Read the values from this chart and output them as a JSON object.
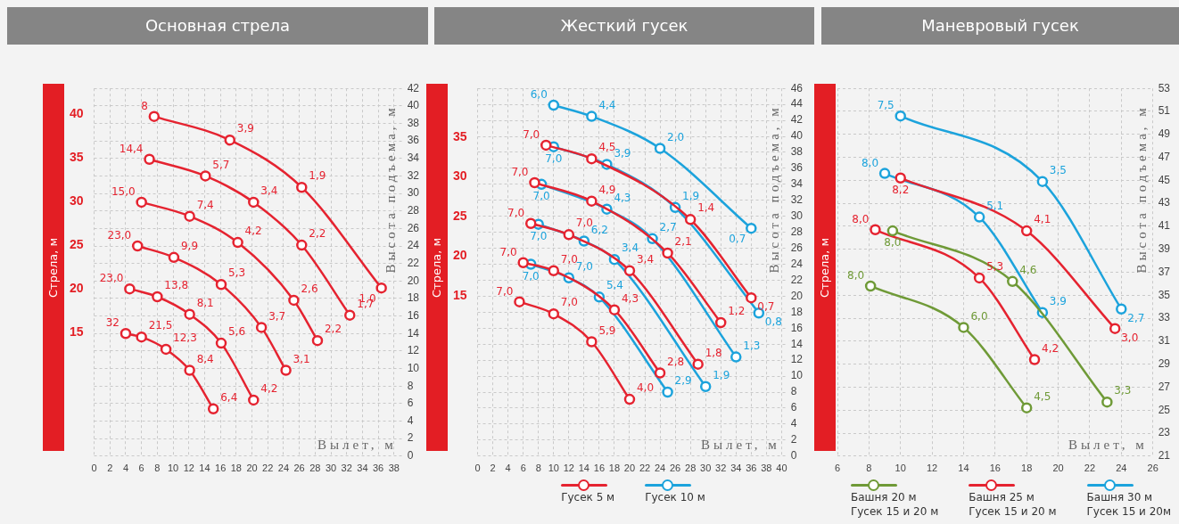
{
  "chart_data": [
    {
      "type": "line",
      "title": "Основная стрела",
      "xlabel": "Вылет, м",
      "ylabel": "Высота подъема, м",
      "y2label": "Стрела, м",
      "xlim": [
        0,
        39
      ],
      "xticks": [
        0,
        2,
        4,
        6,
        8,
        10,
        12,
        14,
        16,
        18,
        20,
        22,
        24,
        26,
        28,
        30,
        32,
        34,
        36,
        38
      ],
      "ylim": [
        0,
        42
      ],
      "yticks": [
        0,
        2,
        4,
        6,
        8,
        10,
        12,
        14,
        16,
        18,
        20,
        22,
        24,
        26,
        28,
        30,
        32,
        34,
        36,
        38,
        40,
        42
      ],
      "y2lim": [
        0.9,
        42.9
      ],
      "y2ticks": [
        15,
        20,
        25,
        30,
        35,
        40
      ],
      "grid": true,
      "legend": false,
      "marker": "circle",
      "line_style": "solid",
      "series": [
        {
          "color": "#e52330",
          "x": [
            7.6,
            17.2,
            26.3,
            36.4
          ],
          "values": [
            38.8,
            36.1,
            30.7,
            19.2
          ]
        },
        {
          "color": "#e52330",
          "x": [
            7.0,
            14.1,
            20.2,
            26.3,
            32.4
          ],
          "values": [
            33.9,
            32.0,
            29.0,
            24.1,
            16.1
          ]
        },
        {
          "color": "#e52330",
          "x": [
            6.0,
            12.1,
            18.2,
            25.3,
            28.3
          ],
          "values": [
            29.0,
            27.4,
            24.4,
            17.8,
            13.2
          ]
        },
        {
          "color": "#e52330",
          "x": [
            5.5,
            10.1,
            16.1,
            21.2,
            24.3
          ],
          "values": [
            24.0,
            22.7,
            19.6,
            14.7,
            9.8
          ]
        },
        {
          "color": "#e52330",
          "x": [
            4.5,
            8.0,
            12.1,
            16.1,
            20.2
          ],
          "values": [
            19.1,
            18.2,
            16.2,
            12.9,
            6.4
          ]
        },
        {
          "color": "#e52330",
          "x": [
            4.0,
            6.0,
            9.1,
            12.1,
            15.1
          ],
          "values": [
            14.0,
            13.6,
            12.2,
            9.8,
            5.4
          ]
        }
      ],
      "annotations": [
        {
          "text": "8",
          "x": 7.6,
          "y": 38.8
        },
        {
          "text": "3,9",
          "x": 17.2,
          "y": 36.1
        },
        {
          "text": "1,9",
          "x": 26.3,
          "y": 30.7
        },
        {
          "text": "1,0",
          "x": 36.4,
          "y": 19.2
        },
        {
          "text": "14,4",
          "x": 7.0,
          "y": 33.9
        },
        {
          "text": "5,7",
          "x": 14.1,
          "y": 32.0
        },
        {
          "text": "3,4",
          "x": 20.2,
          "y": 29.0
        },
        {
          "text": "2,2",
          "x": 26.3,
          "y": 24.1
        },
        {
          "text": "1,7",
          "x": 32.4,
          "y": 16.1
        },
        {
          "text": "15,0",
          "x": 6.0,
          "y": 29.0
        },
        {
          "text": "7,4",
          "x": 12.1,
          "y": 27.4
        },
        {
          "text": "4,2",
          "x": 18.2,
          "y": 24.4
        },
        {
          "text": "2,6",
          "x": 25.3,
          "y": 17.8
        },
        {
          "text": "2,2",
          "x": 28.3,
          "y": 13.2
        },
        {
          "text": "23,0",
          "x": 5.5,
          "y": 24.0
        },
        {
          "text": "9,9",
          "x": 10.1,
          "y": 22.7
        },
        {
          "text": "5,3",
          "x": 16.1,
          "y": 19.6
        },
        {
          "text": "3,7",
          "x": 21.2,
          "y": 14.7
        },
        {
          "text": "3,1",
          "x": 24.3,
          "y": 9.8
        },
        {
          "text": "23,0",
          "x": 4.5,
          "y": 19.1
        },
        {
          "text": "13,8",
          "x": 8.0,
          "y": 18.2
        },
        {
          "text": "8,1",
          "x": 12.1,
          "y": 16.2
        },
        {
          "text": "5,6",
          "x": 16.1,
          "y": 12.9
        },
        {
          "text": "4,2",
          "x": 20.2,
          "y": 6.4
        },
        {
          "text": "32",
          "x": 4.0,
          "y": 14.0
        },
        {
          "text": "21,5",
          "x": 6.0,
          "y": 13.6
        },
        {
          "text": "12,3",
          "x": 9.1,
          "y": 12.2
        },
        {
          "text": "8,4",
          "x": 12.1,
          "y": 9.8
        },
        {
          "text": "6,4",
          "x": 15.1,
          "y": 5.4
        }
      ]
    },
    {
      "type": "line",
      "title": "Жесткий гусек",
      "xlabel": "Вылет, м",
      "ylabel": "Высота подъема, м",
      "y2label": "Стрела, м",
      "xlim": [
        0,
        40.5
      ],
      "xticks": [
        0,
        2,
        4,
        6,
        8,
        10,
        12,
        14,
        16,
        18,
        20,
        22,
        24,
        26,
        28,
        30,
        32,
        34,
        36,
        38,
        40
      ],
      "ylim": [
        0,
        46
      ],
      "yticks": [
        0,
        2,
        4,
        6,
        8,
        10,
        12,
        14,
        16,
        18,
        20,
        22,
        24,
        26,
        28,
        30,
        32,
        34,
        36,
        38,
        40,
        42,
        44,
        46
      ],
      "y2lim": [
        -5.1,
        41.1
      ],
      "y2ticks": [
        15,
        20,
        25,
        30,
        35
      ],
      "grid": true,
      "legend": "bottom",
      "marker": "circle",
      "line_style": "solid",
      "series": [
        {
          "name": "Гусек 5 м",
          "color": "#e52330",
          "x": [
            9,
            15,
            28,
            36
          ],
          "values": [
            38.9,
            37.2,
            29.6,
            19.8
          ]
        },
        {
          "color": "#e52330",
          "x": [
            7.5,
            15,
            25,
            32
          ],
          "values": [
            34.2,
            31.9,
            25.4,
            16.7
          ]
        },
        {
          "color": "#e52330",
          "x": [
            7,
            12,
            20,
            29
          ],
          "values": [
            29.1,
            27.7,
            23.2,
            11.5
          ]
        },
        {
          "color": "#e52330",
          "x": [
            6,
            10,
            18,
            24
          ],
          "values": [
            24.2,
            23.2,
            18.3,
            10.4
          ]
        },
        {
          "color": "#e52330",
          "x": [
            5.5,
            10,
            15,
            20
          ],
          "values": [
            19.3,
            17.8,
            14.3,
            7.1
          ]
        },
        {
          "name": "Гусек 10 м",
          "color": "#1ca3dc",
          "x": [
            10,
            15,
            24,
            36
          ],
          "values": [
            43.9,
            42.5,
            38.5,
            28.5
          ]
        },
        {
          "color": "#1ca3dc",
          "x": [
            10,
            17,
            26,
            37
          ],
          "values": [
            38.7,
            36.5,
            31.1,
            17.9
          ]
        },
        {
          "color": "#1ca3dc",
          "x": [
            8.4,
            17,
            23,
            34
          ],
          "values": [
            34.0,
            30.9,
            27.2,
            12.4
          ]
        },
        {
          "color": "#1ca3dc",
          "x": [
            8,
            14,
            18,
            30
          ],
          "values": [
            29.0,
            26.9,
            24.6,
            8.7
          ]
        },
        {
          "color": "#1ca3dc",
          "x": [
            7,
            12,
            16,
            25
          ],
          "values": [
            24.0,
            22.3,
            19.9,
            8.0
          ]
        }
      ],
      "annotations": [
        {
          "text": "7,0",
          "x": 9,
          "y": 38.9
        },
        {
          "text": "4,5",
          "x": 15,
          "y": 37.2
        },
        {
          "text": "1,4",
          "x": 28,
          "y": 29.6
        },
        {
          "text": "0,7",
          "x": 36,
          "y": 19.8
        },
        {
          "text": "7,0",
          "x": 7.5,
          "y": 34.2
        },
        {
          "text": "4,9",
          "x": 15,
          "y": 31.9
        },
        {
          "text": "2,1",
          "x": 25,
          "y": 25.4
        },
        {
          "text": "1,2",
          "x": 32,
          "y": 16.7
        },
        {
          "text": "7,0",
          "x": 7,
          "y": 29.1
        },
        {
          "text": "7,0",
          "x": 12,
          "y": 27.7
        },
        {
          "text": "3,4",
          "x": 20,
          "y": 23.2
        },
        {
          "text": "1,8",
          "x": 29,
          "y": 11.5
        },
        {
          "text": "7,0",
          "x": 6,
          "y": 24.2
        },
        {
          "text": "7,0",
          "x": 10,
          "y": 23.2
        },
        {
          "text": "4,3",
          "x": 18,
          "y": 18.3
        },
        {
          "text": "2,8",
          "x": 24,
          "y": 10.4
        },
        {
          "text": "7,0",
          "x": 5.5,
          "y": 19.3
        },
        {
          "text": "7,0",
          "x": 10,
          "y": 17.8
        },
        {
          "text": "5,9",
          "x": 15,
          "y": 14.3
        },
        {
          "text": "4,0",
          "x": 20,
          "y": 7.1
        },
        {
          "text": "6,0",
          "x": 10,
          "y": 43.9
        },
        {
          "text": "4,4",
          "x": 15,
          "y": 42.5
        },
        {
          "text": "2,0",
          "x": 24,
          "y": 38.5
        },
        {
          "text": "0,7",
          "x": 36,
          "y": 28.5
        },
        {
          "text": "7,0",
          "x": 10,
          "y": 38.7
        },
        {
          "text": "3,9",
          "x": 17,
          "y": 36.5
        },
        {
          "text": "1,9",
          "x": 26,
          "y": 31.1
        },
        {
          "text": "0,8",
          "x": 37,
          "y": 17.9
        },
        {
          "text": "7,0",
          "x": 8.4,
          "y": 34.0
        },
        {
          "text": "4,3",
          "x": 17,
          "y": 30.9
        },
        {
          "text": "2,7",
          "x": 23,
          "y": 27.2
        },
        {
          "text": "1,3",
          "x": 34,
          "y": 12.4
        },
        {
          "text": "7,0",
          "x": 8,
          "y": 29.0
        },
        {
          "text": "6,2",
          "x": 14,
          "y": 26.9
        },
        {
          "text": "3,4",
          "x": 18,
          "y": 24.6
        },
        {
          "text": "1,9",
          "x": 30,
          "y": 8.7
        },
        {
          "text": "7,0",
          "x": 7,
          "y": 24.0
        },
        {
          "text": "7,0",
          "x": 12,
          "y": 22.3
        },
        {
          "text": "5,4",
          "x": 16,
          "y": 19.9
        },
        {
          "text": "2,9",
          "x": 25,
          "y": 8.0
        }
      ]
    },
    {
      "type": "line",
      "title": "Маневровый гусек",
      "xlabel": "Вылет, м",
      "ylabel": "Высота подъема, м",
      "y2label": "Стрела, м",
      "xlim": [
        6,
        26
      ],
      "xticks": [
        6,
        8,
        10,
        12,
        14,
        16,
        18,
        20,
        22,
        24,
        26
      ],
      "ylim": [
        21,
        53
      ],
      "yticks": [
        21,
        23,
        25,
        27,
        29,
        31,
        33,
        35,
        37,
        39,
        41,
        43,
        45,
        47,
        49,
        51,
        53
      ],
      "grid": true,
      "legend": "bottom",
      "marker": "circle",
      "line_style": "solid",
      "series": [
        {
          "name": "Башня 20 м\nГусек 15 и 20 м",
          "color": "#6f9a37",
          "x": [
            8.1,
            14.0,
            18.0
          ],
          "values": [
            35.8,
            32.2,
            25.2
          ]
        },
        {
          "color": "#6f9a37",
          "x": [
            9.5,
            17.1,
            23.1
          ],
          "values": [
            40.6,
            36.2,
            25.7
          ]
        },
        {
          "name": "Башня 25 м\nГусек 15 и 20 м",
          "color": "#e52330",
          "x": [
            8.4,
            15.0,
            18.5
          ],
          "values": [
            40.7,
            36.5,
            29.4
          ]
        },
        {
          "color": "#e52330",
          "x": [
            10.0,
            18.0,
            23.6
          ],
          "values": [
            45.2,
            40.6,
            32.1
          ]
        },
        {
          "name": "Башня 30 м\nГусек 15 и 20м",
          "color": "#1ca3dc",
          "x": [
            9.0,
            15.0,
            19.0
          ],
          "values": [
            45.6,
            41.8,
            33.5
          ]
        },
        {
          "color": "#1ca3dc",
          "x": [
            10.0,
            19.0,
            24.0
          ],
          "values": [
            50.6,
            44.9,
            33.8
          ]
        }
      ],
      "annotations": [
        {
          "text": "8,0",
          "x": 8.1,
          "y": 35.8
        },
        {
          "text": "6,0",
          "x": 14.0,
          "y": 32.2
        },
        {
          "text": "4,5",
          "x": 18.0,
          "y": 25.2
        },
        {
          "text": "8,0",
          "x": 9.5,
          "y": 40.6
        },
        {
          "text": "4,6",
          "x": 17.1,
          "y": 36.2
        },
        {
          "text": "3,3",
          "x": 23.1,
          "y": 25.7
        },
        {
          "text": "8,0",
          "x": 8.4,
          "y": 40.7
        },
        {
          "text": "5,3",
          "x": 15.0,
          "y": 36.5
        },
        {
          "text": "4,2",
          "x": 18.5,
          "y": 29.4
        },
        {
          "text": "8,2",
          "x": 10.0,
          "y": 45.2
        },
        {
          "text": "4,1",
          "x": 18.0,
          "y": 40.6
        },
        {
          "text": "3,0",
          "x": 23.6,
          "y": 32.1
        },
        {
          "text": "8,0",
          "x": 9.0,
          "y": 45.6
        },
        {
          "text": "5,1",
          "x": 15.0,
          "y": 41.8
        },
        {
          "text": "3,9",
          "x": 19.0,
          "y": 33.5
        },
        {
          "text": "7,5",
          "x": 10.0,
          "y": 50.6
        },
        {
          "text": "3,5",
          "x": 19.0,
          "y": 44.9
        },
        {
          "text": "2,7",
          "x": 24.0,
          "y": 33.8
        }
      ]
    }
  ]
}
